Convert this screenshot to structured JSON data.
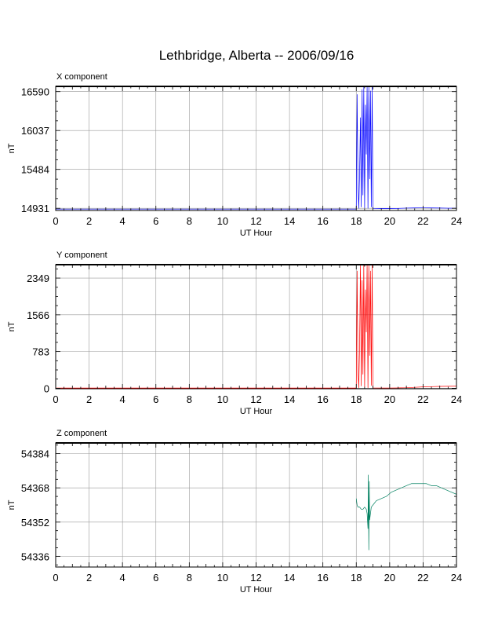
{
  "title": "Lethbridge, Alberta -- 2006/09/16",
  "chart_data": [
    {
      "type": "line",
      "title": "X component",
      "xlabel": "UT Hour",
      "ylabel": "nT",
      "xlim": [
        0,
        24
      ],
      "ylim": [
        14900,
        16665
      ],
      "xticks": [
        0,
        2,
        4,
        6,
        8,
        10,
        12,
        14,
        16,
        18,
        20,
        22,
        24
      ],
      "yticks": [
        14931,
        15484,
        16037,
        16590
      ],
      "color": "#0000ff",
      "grid": true,
      "series": [
        {
          "x": [
            0,
            18.0,
            18.05,
            18.1,
            18.15,
            18.2,
            18.25,
            18.3,
            18.35,
            18.4,
            18.45,
            18.5,
            18.55,
            18.6,
            18.65,
            18.7,
            18.75,
            18.8,
            18.85,
            18.9,
            18.95,
            19.0,
            19.5,
            20,
            20.5,
            21,
            21.5,
            22,
            22.5,
            23,
            23.5,
            24
          ],
          "y": [
            14920,
            14920,
            16550,
            15300,
            14930,
            15420,
            16220,
            14950,
            16620,
            15120,
            16660,
            14935,
            16400,
            15700,
            16660,
            14930,
            16660,
            15350,
            16600,
            14950,
            16660,
            14930,
            14928,
            14928,
            14930,
            14934,
            14936,
            14937,
            14936,
            14935,
            14933,
            14932
          ]
        }
      ]
    },
    {
      "type": "line",
      "title": "Y component",
      "xlabel": "UT Hour",
      "ylabel": "nT",
      "xlim": [
        0,
        24
      ],
      "ylim": [
        -10,
        2635
      ],
      "xticks": [
        0,
        2,
        4,
        6,
        8,
        10,
        12,
        14,
        16,
        18,
        20,
        22,
        24
      ],
      "yticks": [
        0,
        783,
        1566,
        2349
      ],
      "color": "#ff0000",
      "grid": true,
      "series": [
        {
          "x": [
            0,
            18.0,
            18.05,
            18.1,
            18.15,
            18.2,
            18.25,
            18.3,
            18.35,
            18.4,
            18.45,
            18.5,
            18.55,
            18.6,
            18.65,
            18.7,
            18.75,
            18.8,
            18.85,
            18.9,
            18.95,
            19.0,
            19.5,
            20,
            20.5,
            21,
            21.5,
            22,
            22.5,
            23,
            23.5,
            24
          ],
          "y": [
            5,
            5,
            2500,
            400,
            10,
            900,
            2620,
            50,
            2300,
            300,
            2630,
            20,
            2100,
            1200,
            2630,
            10,
            2630,
            700,
            2500,
            60,
            2630,
            8,
            6,
            6,
            8,
            12,
            20,
            30,
            35,
            40,
            42,
            44
          ]
        }
      ]
    },
    {
      "type": "line",
      "title": "Z component",
      "xlabel": "UT Hour",
      "ylabel": "nT",
      "xlim": [
        0,
        24
      ],
      "ylim": [
        54331,
        54389
      ],
      "xticks": [
        0,
        2,
        4,
        6,
        8,
        10,
        12,
        14,
        16,
        18,
        20,
        22,
        24
      ],
      "yticks": [
        54336,
        54352,
        54368,
        54384
      ],
      "color": "#008060",
      "grid": true,
      "series": [
        {
          "x": [
            18.0,
            18.05,
            18.1,
            18.2,
            18.3,
            18.4,
            18.5,
            18.6,
            18.65,
            18.7,
            18.72,
            18.75,
            18.78,
            18.8,
            18.85,
            18.9,
            19.0,
            19.2,
            19.5,
            19.8,
            20.1,
            20.4,
            20.7,
            21.0,
            21.3,
            21.6,
            21.9,
            22.2,
            22.5,
            22.8,
            23.1,
            23.4,
            23.7,
            24.0
          ],
          "y": [
            54363,
            54360,
            54359,
            54359,
            54358,
            54358,
            54359,
            54358,
            54356,
            54349,
            54374,
            54339,
            54371,
            54353,
            54356,
            54359,
            54360,
            54362,
            54363,
            54364,
            54366,
            54367,
            54368,
            54369,
            54370,
            54370,
            54370,
            54370,
            54369,
            54369,
            54368,
            54367,
            54366,
            54365
          ]
        }
      ]
    }
  ]
}
